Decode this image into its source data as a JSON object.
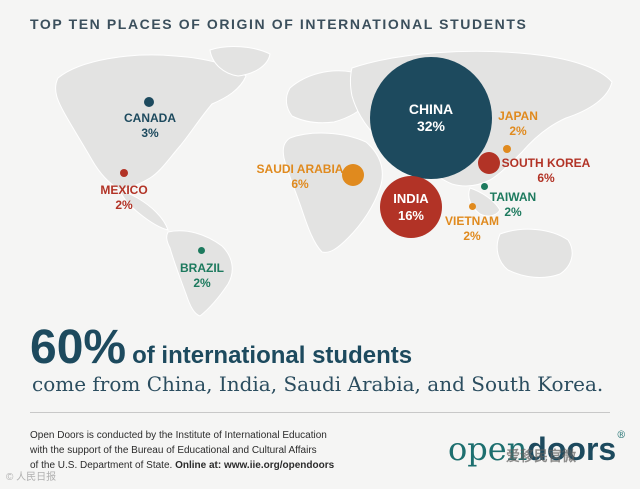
{
  "title": "TOP TEN PLACES OF ORIGIN OF INTERNATIONAL STUDENTS",
  "colors": {
    "background": "#f5f5f4",
    "land": "#e3e3e2",
    "china": "#1d4a5e",
    "red": "#b23326",
    "orange": "#e08a1e",
    "green": "#1d7a5e"
  },
  "locations": [
    {
      "country": "CHINA",
      "percent": "32%",
      "color": "#1d4a5e"
    },
    {
      "country": "INDIA",
      "percent": "16%",
      "color": "#b23326"
    },
    {
      "country": "SAUDI ARABIA",
      "percent": "6%",
      "color": "#e08a1e"
    },
    {
      "country": "SOUTH KOREA",
      "percent": "6%",
      "color": "#b23326"
    },
    {
      "country": "CANADA",
      "percent": "3%",
      "color": "#1d4a5e"
    },
    {
      "country": "JAPAN",
      "percent": "2%",
      "color": "#e08a1e"
    },
    {
      "country": "TAIWAN",
      "percent": "2%",
      "color": "#1d7a5e"
    },
    {
      "country": "VIETNAM",
      "percent": "2%",
      "color": "#e08a1e"
    },
    {
      "country": "MEXICO",
      "percent": "2%",
      "color": "#b23326"
    },
    {
      "country": "BRAZIL",
      "percent": "2%",
      "color": "#1d7a5e"
    }
  ],
  "headline": {
    "number": "60%",
    "text": "of international students",
    "sub": "come from China, India, Saudi Arabia, and South Korea."
  },
  "footer": {
    "line1": "Open Doors is conducted by the Institute of International Education",
    "line2": "with the support of the Bureau of Educational and Cultural Affairs",
    "line3": "of the U.S. Department of State.",
    "online": "Online at: www.iie.org/opendoors"
  },
  "logo": {
    "open": "open",
    "doors": "doors",
    "mark": "®"
  },
  "watermark_left": "© 人民日报",
  "watermark_right": "爱移民官微"
}
